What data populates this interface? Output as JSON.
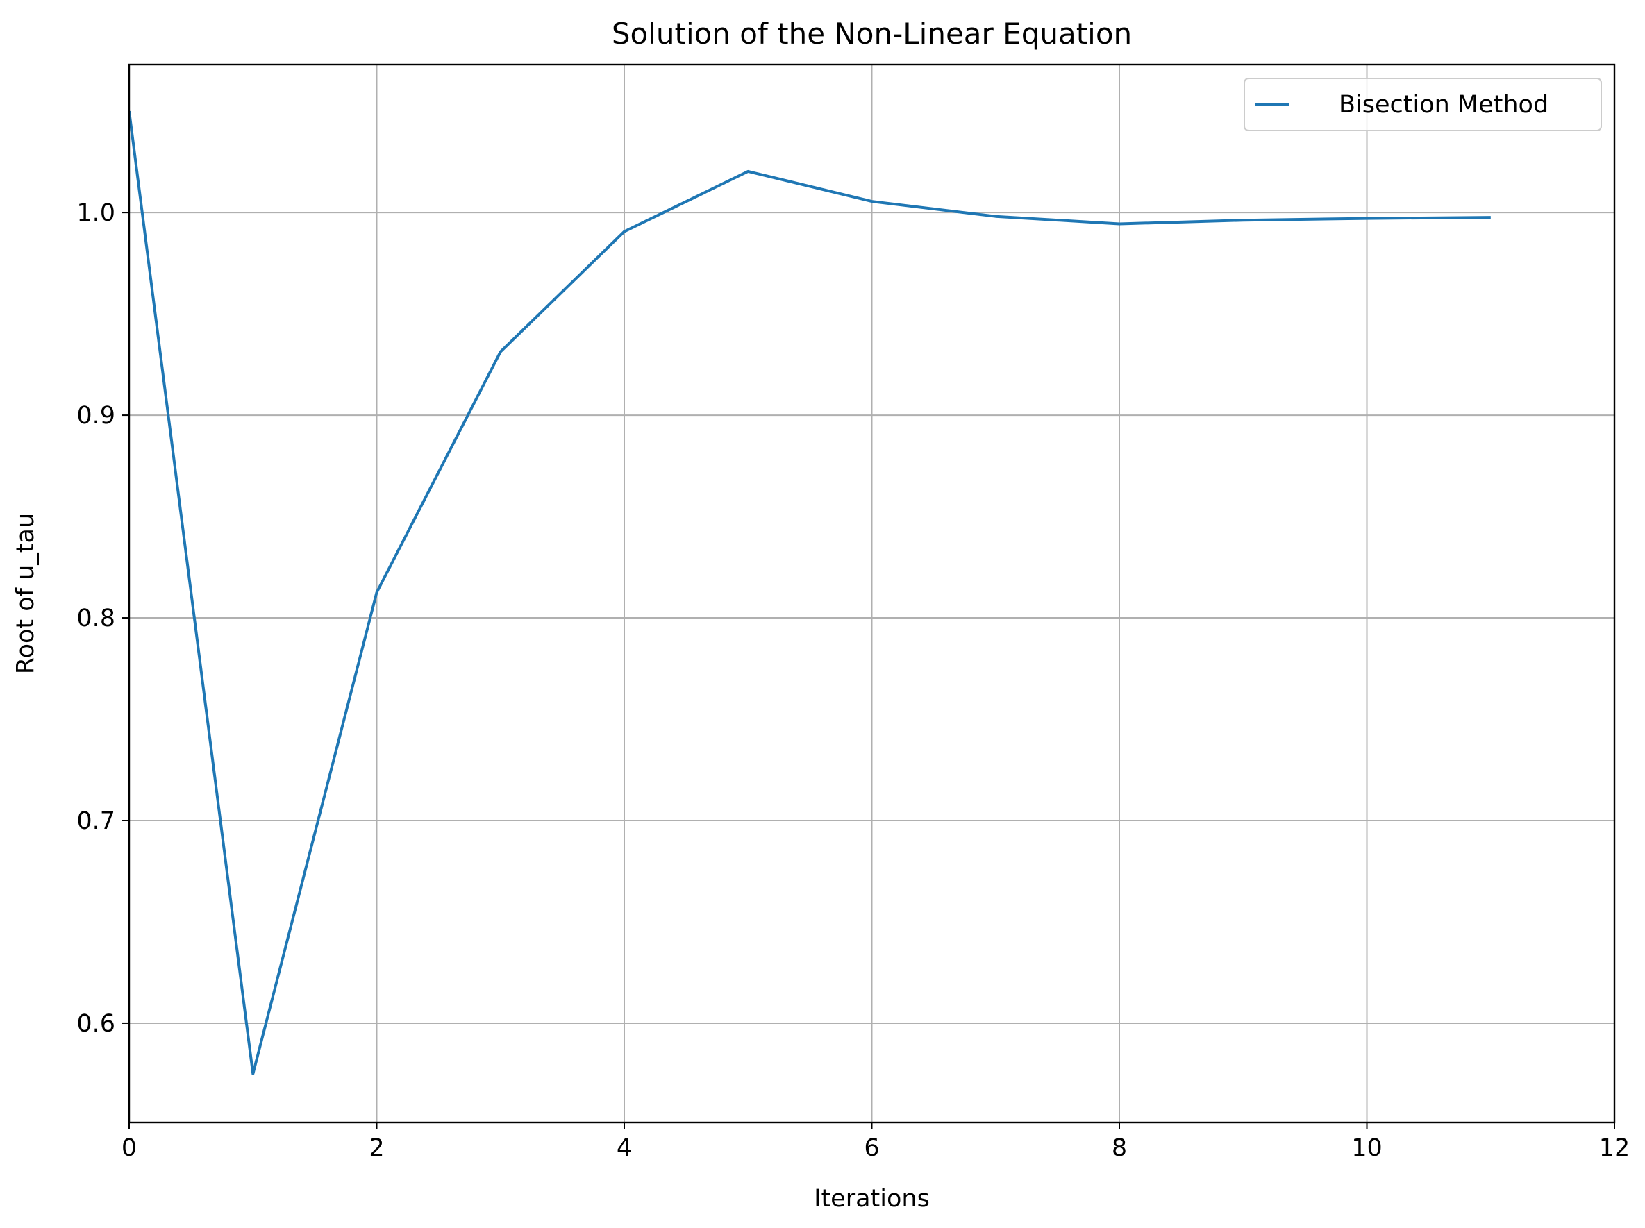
{
  "chart_data": {
    "type": "line",
    "title": "Solution of the Non-Linear Equation",
    "xlabel": "Iterations",
    "ylabel": "Root of u_tau",
    "xlim": [
      0,
      12
    ],
    "ylim": [
      0.551,
      1.073
    ],
    "xticks": [
      0,
      2,
      4,
      6,
      8,
      10,
      12
    ],
    "xtick_labels": [
      "0",
      "2",
      "4",
      "6",
      "8",
      "10",
      "12"
    ],
    "yticks": [
      0.6,
      0.7,
      0.8,
      0.9,
      1.0
    ],
    "ytick_labels": [
      "0.6",
      "0.7",
      "0.8",
      "0.9",
      "1.0"
    ],
    "grid": true,
    "legend_position": "top-right",
    "series": [
      {
        "name": "Bisection Method",
        "color": "#1f77b4",
        "x": [
          0,
          1,
          2,
          3,
          4,
          5,
          6,
          7,
          8,
          9,
          10,
          11
        ],
        "y": [
          1.05,
          0.575,
          0.8125,
          0.9313,
          0.9906,
          1.0203,
          1.0055,
          0.9981,
          0.9944,
          0.9962,
          0.9971,
          0.9976
        ]
      }
    ]
  }
}
